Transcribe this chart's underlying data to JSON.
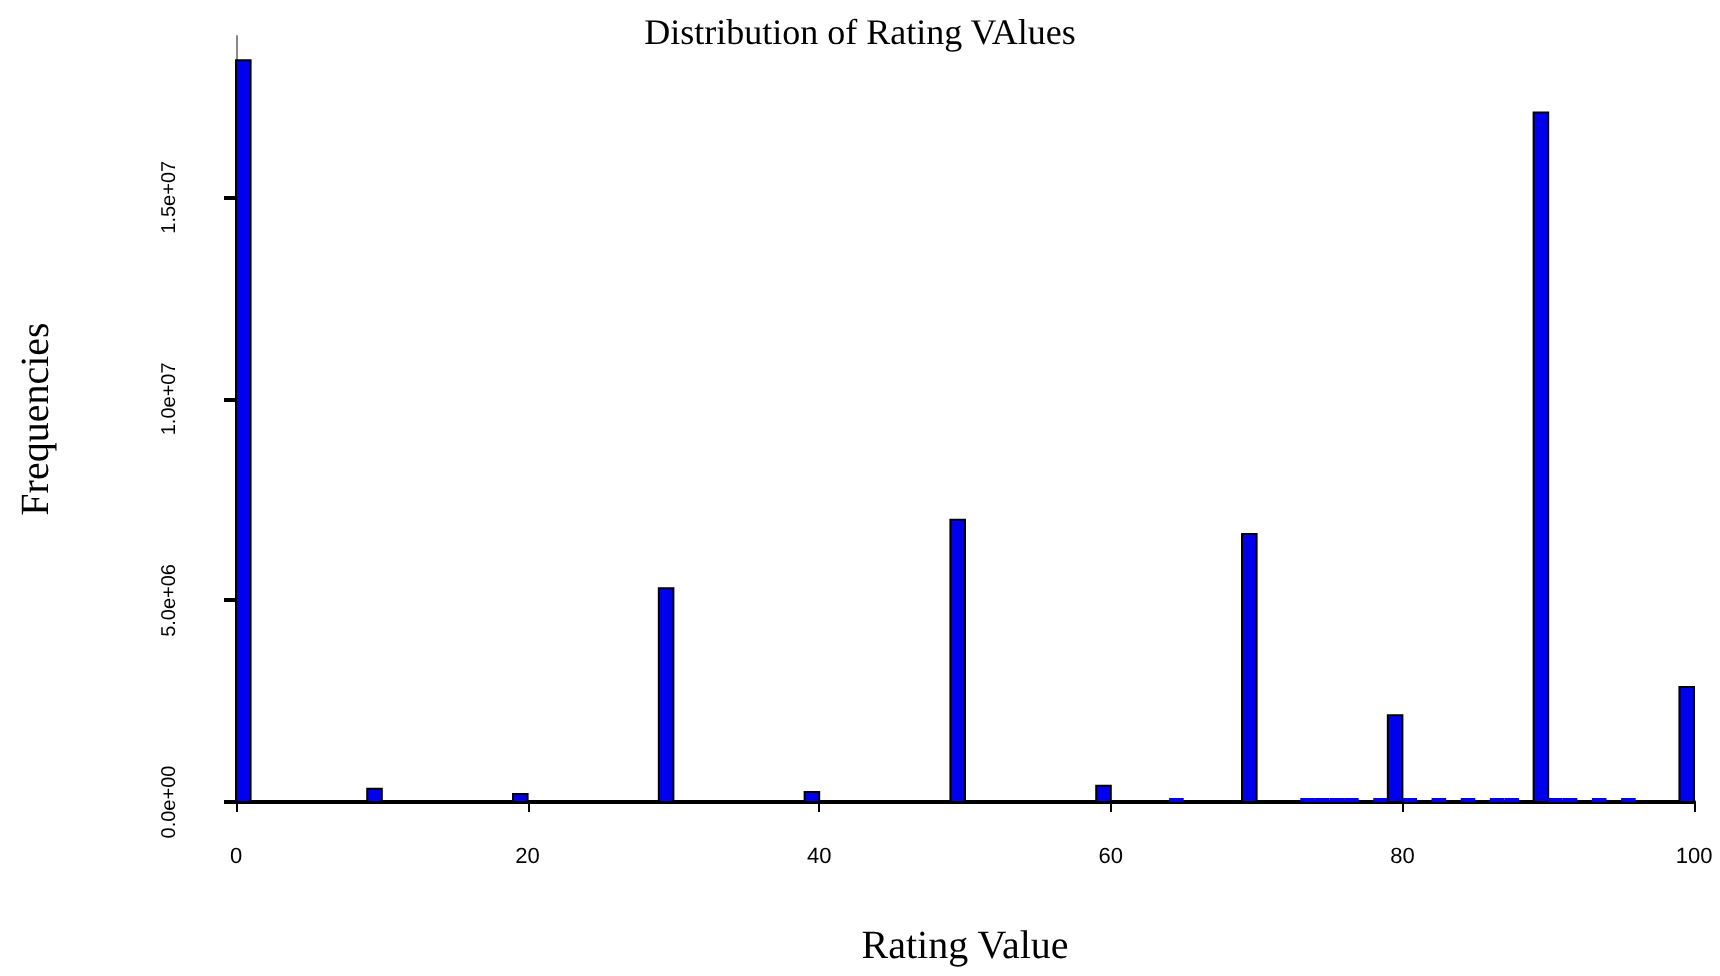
{
  "chart_data": {
    "type": "histogram",
    "title": "Distribution of Rating VAlues",
    "xlabel": "Rating Value",
    "ylabel": "Frequencies",
    "color": "#0000ee",
    "bins": [
      0,
      1,
      2,
      3,
      4,
      5,
      6,
      7,
      8,
      9,
      10,
      11,
      12,
      13,
      14,
      15,
      16,
      17,
      18,
      19,
      20,
      21,
      22,
      23,
      24,
      25,
      26,
      27,
      28,
      29,
      30,
      31,
      32,
      33,
      34,
      35,
      36,
      37,
      38,
      39,
      40,
      41,
      42,
      43,
      44,
      45,
      46,
      47,
      48,
      49,
      50,
      51,
      52,
      53,
      54,
      55,
      56,
      57,
      58,
      59,
      60,
      61,
      62,
      63,
      64,
      65,
      66,
      67,
      68,
      69,
      70,
      71,
      72,
      73,
      74,
      75,
      76,
      77,
      78,
      79,
      80,
      81,
      82,
      83,
      84,
      85,
      86,
      87,
      88,
      89,
      90,
      91,
      92,
      93,
      94,
      95,
      96,
      97,
      98,
      99,
      100
    ],
    "values": [
      18400000,
      0,
      0,
      0,
      0,
      0,
      0,
      0,
      0,
      330000,
      0,
      0,
      0,
      0,
      0,
      0,
      0,
      0,
      0,
      200000,
      0,
      0,
      0,
      0,
      0,
      0,
      0,
      0,
      0,
      5300000,
      0,
      0,
      0,
      0,
      0,
      0,
      0,
      0,
      0,
      250000,
      0,
      0,
      0,
      0,
      0,
      0,
      0,
      0,
      0,
      7000000,
      0,
      0,
      0,
      0,
      0,
      0,
      0,
      0,
      0,
      400000,
      0,
      0,
      0,
      0,
      50000,
      0,
      0,
      0,
      0,
      6650000,
      0,
      0,
      0,
      50000,
      50000,
      50000,
      50000,
      0,
      50000,
      2150000,
      50000,
      0,
      50000,
      0,
      50000,
      0,
      50000,
      50000,
      0,
      17100000,
      50000,
      50000,
      0,
      50000,
      0,
      50000,
      0,
      0,
      0,
      2850000
    ],
    "xlim": [
      0,
      100
    ],
    "xticks": [
      0,
      20,
      40,
      60,
      80,
      100
    ],
    "ylim": [
      0,
      19000000
    ],
    "yticks": [
      {
        "value": 0,
        "label": "0.0e+00"
      },
      {
        "value": 5000000,
        "label": "5.0e+06"
      },
      {
        "value": 10000000,
        "label": "1.0e+07"
      },
      {
        "value": 15000000,
        "label": "1.5e+07"
      }
    ],
    "grid": false
  }
}
